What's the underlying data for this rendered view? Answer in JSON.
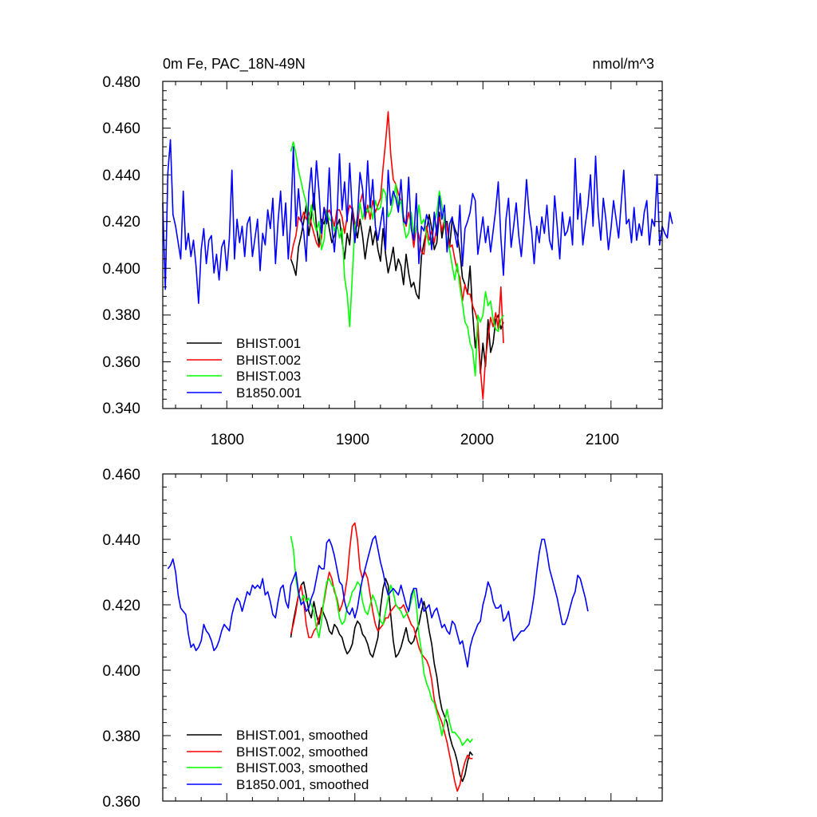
{
  "chart_data": [
    {
      "type": "line",
      "title": "0m Fe, PAC_18N-49N",
      "units": "nmol/m^3",
      "xlabel": "",
      "ylabel": "",
      "xlim": [
        1750,
        2140
      ],
      "ylim": [
        0.34,
        0.48
      ],
      "xticks": [
        1800,
        1900,
        2000,
        2100
      ],
      "xtick_labels": [
        "1800",
        "1900",
        "2000",
        "2100"
      ],
      "yticks": [
        0.34,
        0.36,
        0.38,
        0.4,
        0.42,
        0.44,
        0.46,
        0.48
      ],
      "ytick_labels": [
        "0.340",
        "0.360",
        "0.380",
        "0.400",
        "0.420",
        "0.440",
        "0.460",
        "0.480"
      ],
      "legend_position": "bottom-left",
      "series": [
        {
          "name": "BHIST.001",
          "color": "#000000",
          "x0": 1850,
          "step": 2,
          "values": [
            0.404,
            0.401,
            0.397,
            0.409,
            0.414,
            0.42,
            0.427,
            0.414,
            0.422,
            0.432,
            0.418,
            0.41,
            0.421,
            0.419,
            0.424,
            0.417,
            0.411,
            0.414,
            0.418,
            0.421,
            0.412,
            0.404,
            0.415,
            0.41,
            0.426,
            0.419,
            0.413,
            0.421,
            0.414,
            0.404,
            0.412,
            0.418,
            0.41,
            0.416,
            0.408,
            0.403,
            0.417,
            0.406,
            0.398,
            0.403,
            0.409,
            0.399,
            0.404,
            0.401,
            0.393,
            0.406,
            0.398,
            0.392,
            0.394,
            0.389,
            0.387,
            0.405,
            0.411,
            0.416,
            0.423,
            0.417,
            0.408,
            0.411,
            0.424,
            0.413,
            0.42,
            0.42,
            0.409,
            0.421,
            0.417,
            0.414,
            0.407,
            0.396,
            0.393,
            0.389,
            0.401,
            0.381,
            0.366,
            0.374,
            0.355,
            0.368,
            0.358,
            0.378,
            0.364,
            0.368,
            0.378,
            0.38,
            0.374,
            0.377
          ]
        },
        {
          "name": "BHIST.002",
          "color": "#ff0000",
          "x0": 1850,
          "step": 2,
          "values": [
            0.404,
            0.41,
            0.414,
            0.422,
            0.42,
            0.424,
            0.421,
            0.424,
            0.419,
            0.415,
            0.411,
            0.409,
            0.413,
            0.426,
            0.423,
            0.425,
            0.422,
            0.418,
            0.425,
            0.425,
            0.422,
            0.415,
            0.422,
            0.427,
            0.425,
            0.418,
            0.418,
            0.428,
            0.432,
            0.421,
            0.427,
            0.421,
            0.429,
            0.424,
            0.427,
            0.43,
            0.443,
            0.454,
            0.467,
            0.449,
            0.438,
            0.436,
            0.432,
            0.429,
            0.422,
            0.418,
            0.424,
            0.418,
            0.409,
            0.418,
            0.414,
            0.407,
            0.406,
            0.418,
            0.412,
            0.416,
            0.411,
            0.418,
            0.422,
            0.416,
            0.421,
            0.418,
            0.409,
            0.41,
            0.404,
            0.399,
            0.396,
            0.386,
            0.393,
            0.389,
            0.389,
            0.384,
            0.381,
            0.377,
            0.357,
            0.344,
            0.361,
            0.37,
            0.379,
            0.375,
            0.381,
            0.374,
            0.392,
            0.368
          ]
        },
        {
          "name": "BHIST.003",
          "color": "#00ff00",
          "x0": 1850,
          "step": 2,
          "values": [
            0.45,
            0.454,
            0.449,
            0.442,
            0.437,
            0.432,
            0.428,
            0.419,
            0.427,
            0.42,
            0.416,
            0.42,
            0.408,
            0.412,
            0.425,
            0.421,
            0.42,
            0.416,
            0.419,
            0.413,
            0.417,
            0.396,
            0.389,
            0.375,
            0.397,
            0.418,
            0.422,
            0.428,
            0.421,
            0.426,
            0.424,
            0.428,
            0.421,
            0.429,
            0.425,
            0.426,
            0.434,
            0.432,
            0.422,
            0.424,
            0.429,
            0.436,
            0.426,
            0.429,
            0.419,
            0.413,
            0.415,
            0.424,
            0.414,
            0.417,
            0.427,
            0.419,
            0.421,
            0.414,
            0.41,
            0.412,
            0.419,
            0.424,
            0.433,
            0.427,
            0.419,
            0.412,
            0.408,
            0.401,
            0.395,
            0.402,
            0.392,
            0.385,
            0.377,
            0.375,
            0.368,
            0.365,
            0.354,
            0.38,
            0.377,
            0.38,
            0.39,
            0.384,
            0.386,
            0.378,
            0.374,
            0.373,
            0.378,
            0.38
          ]
        },
        {
          "name": "B1850.001",
          "color": "#0000ff",
          "x0": 1750,
          "step": 2,
          "values": [
            0.428,
            0.391,
            0.441,
            0.455,
            0.423,
            0.418,
            0.411,
            0.404,
            0.433,
            0.408,
            0.415,
            0.405,
            0.412,
            0.401,
            0.385,
            0.408,
            0.417,
            0.402,
            0.412,
            0.414,
            0.398,
            0.406,
            0.395,
            0.409,
            0.412,
            0.399,
            0.413,
            0.442,
            0.404,
            0.421,
            0.411,
            0.418,
            0.405,
            0.419,
            0.422,
            0.405,
            0.413,
            0.421,
            0.399,
            0.415,
            0.41,
            0.425,
            0.417,
            0.43,
            0.402,
            0.42,
            0.433,
            0.414,
            0.428,
            0.404,
            0.421,
            0.452,
            0.418,
            0.434,
            0.421,
            0.416,
            0.403,
            0.432,
            0.443,
            0.425,
            0.446,
            0.433,
            0.415,
            0.426,
            0.419,
            0.443,
            0.418,
            0.407,
            0.421,
            0.449,
            0.425,
            0.437,
            0.42,
            0.445,
            0.424,
            0.411,
            0.422,
            0.441,
            0.434,
            0.422,
            0.446,
            0.426,
            0.438,
            0.418,
            0.412,
            0.419,
            0.426,
            0.408,
            0.442,
            0.427,
            0.433,
            0.43,
            0.424,
            0.438,
            0.42,
            0.419,
            0.439,
            0.417,
            0.412,
            0.432,
            0.402,
            0.418,
            0.416,
            0.423,
            0.419,
            0.408,
            0.424,
            0.414,
            0.431,
            0.421,
            0.427,
            0.407,
            0.419,
            0.422,
            0.415,
            0.409,
            0.427,
            0.401,
            0.417,
            0.42,
            0.424,
            0.432,
            0.429,
            0.406,
            0.414,
            0.422,
            0.411,
            0.418,
            0.407,
            0.416,
            0.425,
            0.437,
            0.413,
            0.397,
            0.421,
            0.43,
            0.409,
            0.418,
            0.428,
            0.414,
            0.405,
            0.419,
            0.438,
            0.424,
            0.416,
            0.402,
            0.418,
            0.411,
            0.422,
            0.415,
            0.427,
            0.412,
            0.408,
            0.431,
            0.418,
            0.404,
            0.424,
            0.414,
            0.416,
            0.422,
            0.41,
            0.447,
            0.421,
            0.432,
            0.41,
            0.419,
            0.427,
            0.44,
            0.418,
            0.448,
            0.424,
            0.412,
            0.43,
            0.421,
            0.408,
            0.417,
            0.429,
            0.421,
            0.413,
            0.428,
            0.442,
            0.419,
            0.421,
            0.411,
            0.426,
            0.412,
            0.419,
            0.414,
            0.424,
            0.429,
            0.41,
            0.421,
            0.418,
            0.44,
            0.41,
            0.418,
            0.415,
            0.413,
            0.424,
            0.419
          ]
        }
      ]
    },
    {
      "type": "line",
      "title": "",
      "xlabel": "",
      "ylabel": "",
      "xlim": [
        1750,
        2140
      ],
      "ylim": [
        0.36,
        0.46
      ],
      "xticks": [
        1800,
        1900,
        2000,
        2100
      ],
      "xtick_labels": [],
      "yticks": [
        0.36,
        0.38,
        0.4,
        0.42,
        0.44,
        0.46
      ],
      "ytick_labels": [
        "0.360",
        "0.380",
        "0.400",
        "0.420",
        "0.440",
        "0.460"
      ],
      "legend_position": "bottom-left",
      "series": [
        {
          "name": "BHIST.001, smoothed",
          "color": "#000000",
          "x0": 1850,
          "step": 2,
          "values": [
            0.41,
            0.415,
            0.419,
            0.423,
            0.426,
            0.427,
            0.423,
            0.418,
            0.416,
            0.421,
            0.417,
            0.414,
            0.419,
            0.417,
            0.415,
            0.412,
            0.411,
            0.414,
            0.413,
            0.411,
            0.41,
            0.407,
            0.405,
            0.406,
            0.408,
            0.413,
            0.415,
            0.414,
            0.411,
            0.41,
            0.408,
            0.405,
            0.404,
            0.407,
            0.41,
            0.419,
            0.425,
            0.428,
            0.426,
            0.417,
            0.409,
            0.404,
            0.405,
            0.407,
            0.41,
            0.413,
            0.409,
            0.408,
            0.409,
            0.412,
            0.414,
            0.418,
            0.421,
            0.417,
            0.412,
            0.408,
            0.402,
            0.398,
            0.392,
            0.388,
            0.386,
            0.384,
            0.38,
            0.377,
            0.375,
            0.372,
            0.368,
            0.366,
            0.368,
            0.372,
            0.375,
            0.374
          ]
        },
        {
          "name": "BHIST.002, smoothed",
          "color": "#ff0000",
          "x0": 1850,
          "step": 2,
          "values": [
            0.411,
            0.414,
            0.418,
            0.423,
            0.426,
            0.421,
            0.414,
            0.41,
            0.41,
            0.412,
            0.413,
            0.416,
            0.418,
            0.421,
            0.426,
            0.43,
            0.428,
            0.424,
            0.422,
            0.418,
            0.42,
            0.423,
            0.428,
            0.437,
            0.444,
            0.445,
            0.44,
            0.431,
            0.428,
            0.43,
            0.428,
            0.423,
            0.418,
            0.414,
            0.412,
            0.413,
            0.414,
            0.416,
            0.416,
            0.418,
            0.419,
            0.42,
            0.419,
            0.419,
            0.42,
            0.418,
            0.416,
            0.414,
            0.413,
            0.41,
            0.407,
            0.405,
            0.404,
            0.403,
            0.401,
            0.397,
            0.391,
            0.388,
            0.386,
            0.384,
            0.381,
            0.378,
            0.374,
            0.37,
            0.366,
            0.363,
            0.365,
            0.369,
            0.372,
            0.374,
            0.373,
            0.373
          ]
        },
        {
          "name": "BHIST.003, smoothed",
          "color": "#00ff00",
          "x0": 1850,
          "step": 2,
          "values": [
            0.441,
            0.437,
            0.428,
            0.423,
            0.421,
            0.423,
            0.421,
            0.422,
            0.42,
            0.418,
            0.413,
            0.41,
            0.415,
            0.422,
            0.427,
            0.428,
            0.426,
            0.425,
            0.421,
            0.416,
            0.414,
            0.415,
            0.419,
            0.421,
            0.424,
            0.425,
            0.427,
            0.426,
            0.421,
            0.418,
            0.417,
            0.42,
            0.423,
            0.421,
            0.418,
            0.415,
            0.414,
            0.418,
            0.422,
            0.426,
            0.424,
            0.42,
            0.419,
            0.418,
            0.416,
            0.417,
            0.418,
            0.421,
            0.425,
            0.42,
            0.411,
            0.406,
            0.399,
            0.396,
            0.394,
            0.391,
            0.39,
            0.387,
            0.384,
            0.38,
            0.384,
            0.388,
            0.384,
            0.381,
            0.381,
            0.38,
            0.379,
            0.377,
            0.378,
            0.379,
            0.378,
            0.379
          ]
        },
        {
          "name": "B1850.001, smoothed",
          "color": "#0000ff",
          "x0": 1754,
          "step": 2,
          "values": [
            0.431,
            0.432,
            0.434,
            0.43,
            0.423,
            0.419,
            0.418,
            0.417,
            0.411,
            0.407,
            0.408,
            0.406,
            0.407,
            0.409,
            0.414,
            0.412,
            0.411,
            0.409,
            0.406,
            0.407,
            0.409,
            0.412,
            0.414,
            0.413,
            0.412,
            0.417,
            0.42,
            0.422,
            0.421,
            0.418,
            0.421,
            0.424,
            0.423,
            0.426,
            0.425,
            0.426,
            0.425,
            0.428,
            0.423,
            0.424,
            0.421,
            0.417,
            0.416,
            0.421,
            0.425,
            0.426,
            0.421,
            0.419,
            0.426,
            0.428,
            0.43,
            0.424,
            0.42,
            0.421,
            0.418,
            0.419,
            0.422,
            0.424,
            0.428,
            0.432,
            0.431,
            0.431,
            0.439,
            0.44,
            0.438,
            0.435,
            0.431,
            0.427,
            0.426,
            0.421,
            0.418,
            0.417,
            0.419,
            0.416,
            0.419,
            0.424,
            0.428,
            0.431,
            0.434,
            0.437,
            0.44,
            0.441,
            0.437,
            0.433,
            0.43,
            0.426,
            0.423,
            0.424,
            0.425,
            0.424,
            0.423,
            0.426,
            0.423,
            0.42,
            0.418,
            0.423,
            0.425,
            0.425,
            0.419,
            0.422,
            0.418,
            0.419,
            0.42,
            0.416,
            0.418,
            0.419,
            0.416,
            0.413,
            0.414,
            0.412,
            0.411,
            0.415,
            0.414,
            0.411,
            0.408,
            0.409,
            0.405,
            0.401,
            0.407,
            0.41,
            0.412,
            0.414,
            0.415,
            0.42,
            0.423,
            0.427,
            0.425,
            0.421,
            0.419,
            0.419,
            0.42,
            0.415,
            0.416,
            0.418,
            0.413,
            0.409,
            0.41,
            0.411,
            0.412,
            0.412,
            0.413,
            0.414,
            0.418,
            0.423,
            0.43,
            0.436,
            0.44,
            0.44,
            0.436,
            0.431,
            0.428,
            0.425,
            0.422,
            0.418,
            0.414,
            0.414,
            0.416,
            0.419,
            0.422,
            0.424,
            0.429,
            0.428,
            0.425,
            0.422,
            0.418
          ]
        }
      ]
    }
  ]
}
